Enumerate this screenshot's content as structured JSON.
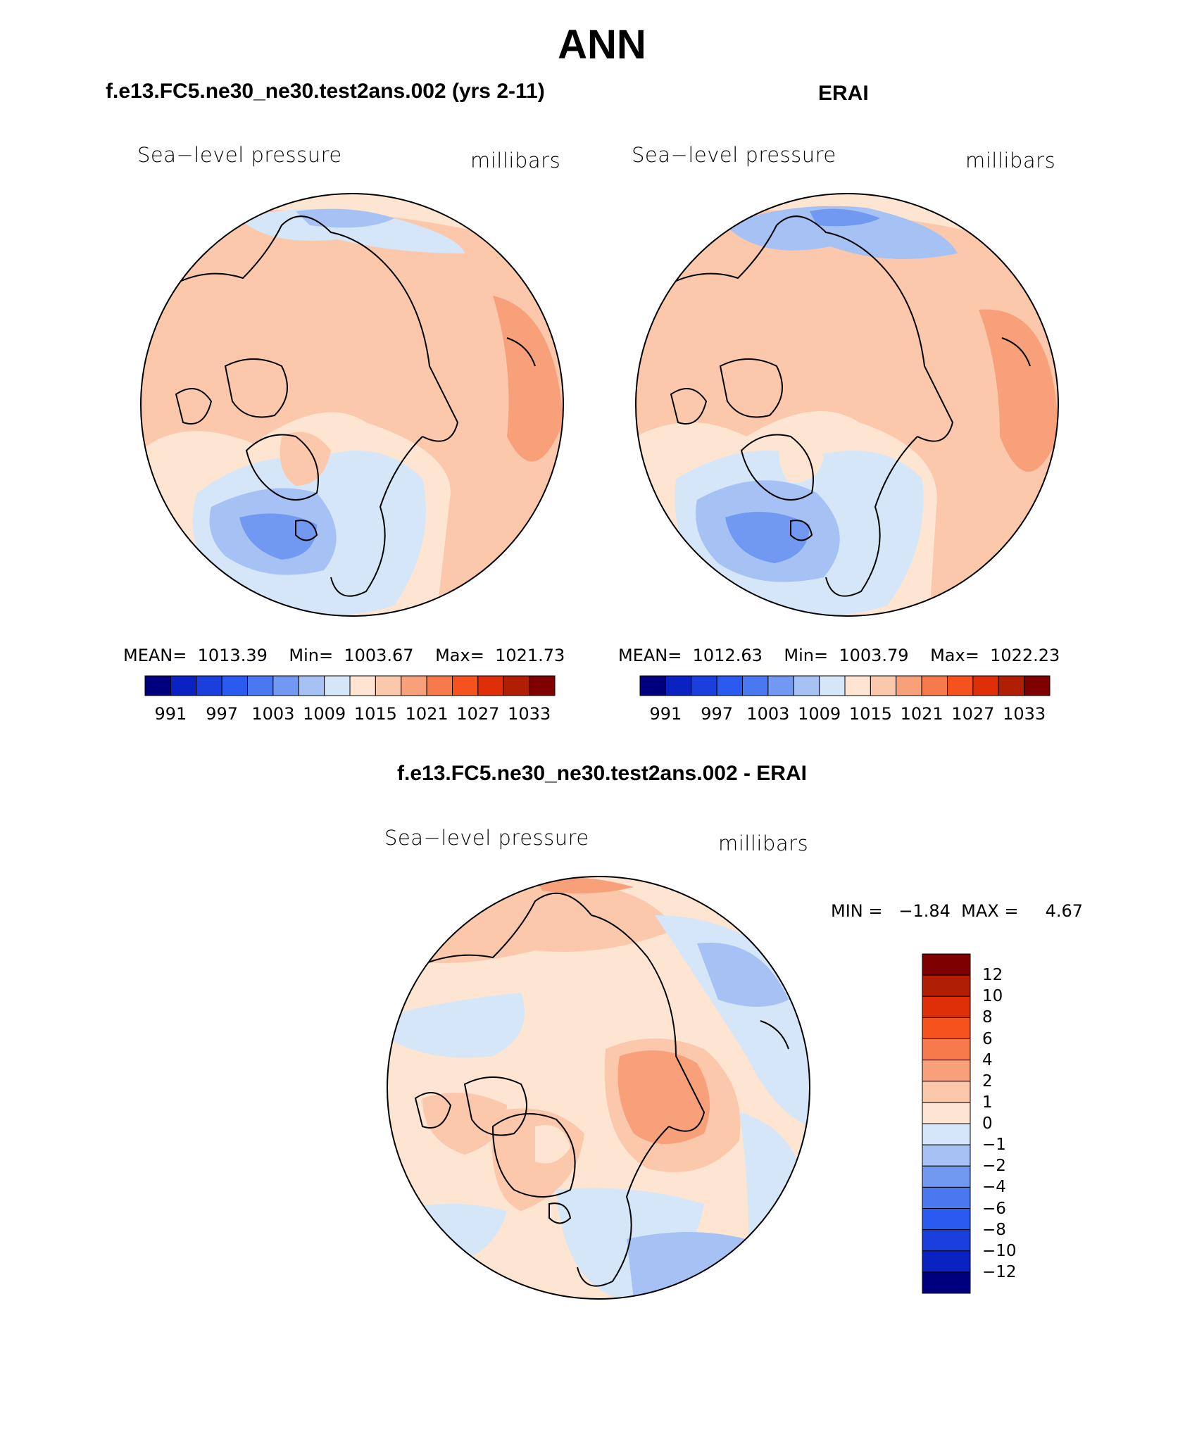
{
  "title": "ANN",
  "panels": {
    "model": {
      "case_title": "f.e13.FC5.ne30_ne30.test2ans.002 (yrs 2-11)",
      "variable": "Sea−level pressure",
      "units": "millibars",
      "stats": "MEAN=  1013.39    Min=  1003.67    Max=  1021.73"
    },
    "obs": {
      "case_title": "ERAI",
      "variable": "Sea−level pressure",
      "units": "millibars",
      "stats": "MEAN=  1012.63    Min=  1003.79    Max=  1022.23"
    },
    "diff": {
      "case_title": "f.e13.FC5.ne30_ne30.test2ans.002 - ERAI",
      "variable": "Sea−level pressure",
      "units": "millibars",
      "minmax": "MIN =   −1.84  MAX =     4.67"
    }
  },
  "colorbar_horizontal": {
    "colors": [
      "#00007f",
      "#0a22c2",
      "#1a3fdc",
      "#2a5af0",
      "#4a78f0",
      "#7299f2",
      "#a6c2f5",
      "#d5e6f9",
      "#fde5d2",
      "#fbc8ac",
      "#f8a07a",
      "#f77a4c",
      "#f4531e",
      "#df2f08",
      "#b01e04",
      "#7f0000"
    ],
    "labels": [
      "991",
      "997",
      "1003",
      "1009",
      "1015",
      "1021",
      "1027",
      "1033"
    ]
  },
  "colorbar_vertical": {
    "colors": [
      "#7f0000",
      "#b01e04",
      "#df2f08",
      "#f4531e",
      "#f77a4c",
      "#f8a07a",
      "#fbc8ac",
      "#fde5d2",
      "#d5e6f9",
      "#a6c2f5",
      "#7299f2",
      "#4a78f0",
      "#2a5af0",
      "#1a3fdc",
      "#0a22c2",
      "#00007f"
    ],
    "labels": [
      "12",
      "10",
      "8",
      "6",
      "4",
      "2",
      "1",
      "0",
      "−1",
      "−2",
      "−4",
      "−6",
      "−8",
      "−10",
      "−12"
    ]
  }
}
